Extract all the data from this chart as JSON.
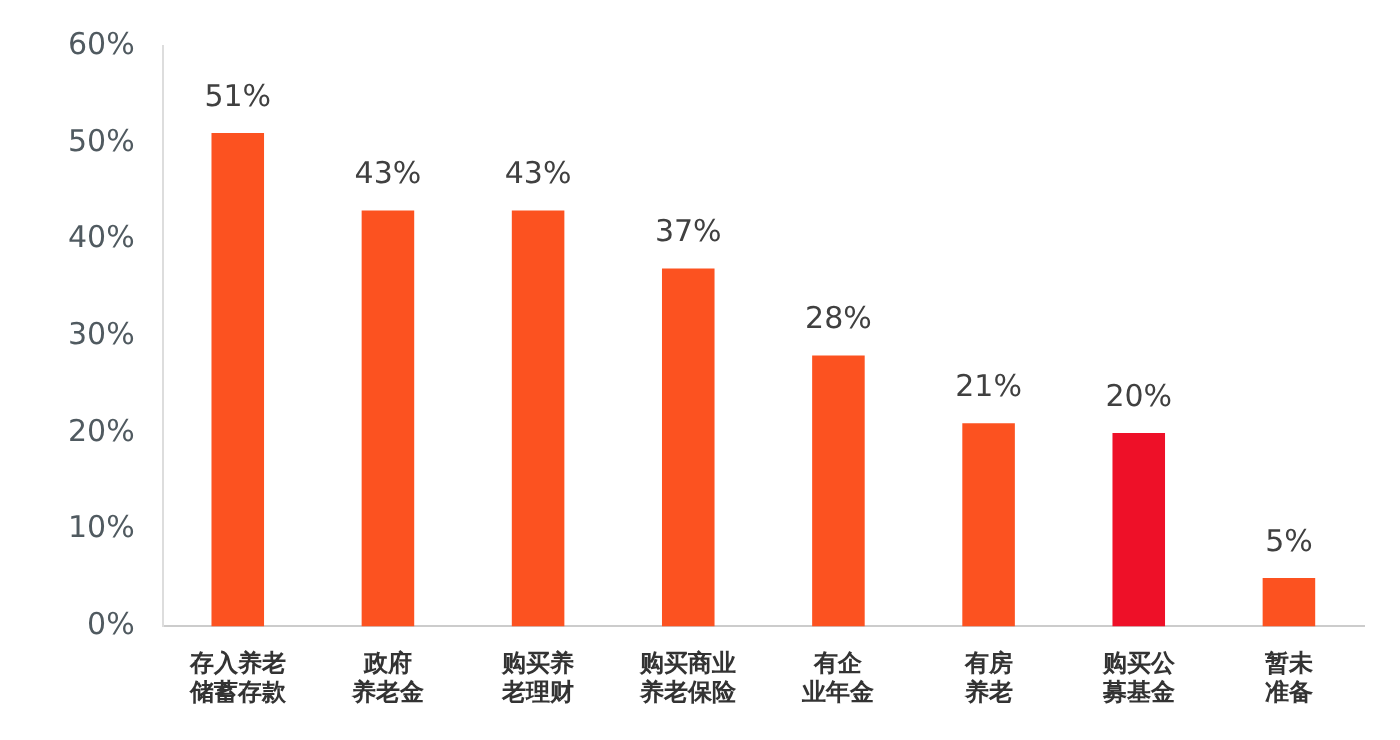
{
  "chart_data": {
    "type": "bar",
    "categories": [
      "存入养老储蓄存款",
      "政府养老金",
      "购买养老理财",
      "购买商业养老保险",
      "有企业年金",
      "有房养老",
      "购买公募基金",
      "暂未准备"
    ],
    "values": [
      51,
      43,
      43,
      37,
      28,
      21,
      20,
      5
    ],
    "colors": [
      "#fc5220",
      "#fc5220",
      "#fc5220",
      "#fc5220",
      "#fc5220",
      "#fc5220",
      "#ee1028",
      "#fc5220"
    ],
    "value_labels": [
      "51%",
      "43%",
      "43%",
      "37%",
      "28%",
      "21%",
      "20%",
      "5%"
    ],
    "ylim": [
      0,
      60
    ],
    "yticks": [
      {
        "value": 0,
        "label": "0%"
      },
      {
        "value": 10,
        "label": "10%"
      },
      {
        "value": 20,
        "label": "20%"
      },
      {
        "value": 30,
        "label": "30%"
      },
      {
        "value": 40,
        "label": "40%"
      },
      {
        "value": 50,
        "label": "50%"
      },
      {
        "value": 60,
        "label": "60%"
      }
    ],
    "grid": false,
    "legend": false
  }
}
